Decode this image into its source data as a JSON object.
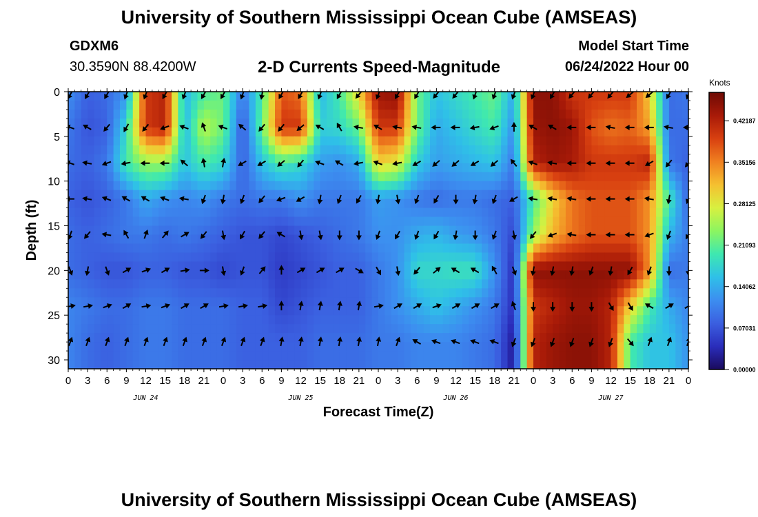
{
  "page": {
    "title": "University of Southern Mississippi Ocean Cube (AMSEAS)",
    "station_id": "GDXM6",
    "station_coords": "30.3590N  88.4200W",
    "plot_title": "2-D Currents Speed-Magnitude",
    "model_start_label": "Model Start Time",
    "model_start_value": "06/24/2022 Hour 00",
    "footer_title": "University of Southern Mississippi Ocean Cube (AMSEAS)"
  },
  "chart_data": {
    "type": "heatmap",
    "title": "2-D Currents Speed-Magnitude",
    "xlabel": "Forecast Time(Z)",
    "ylabel": "Depth (ft)",
    "xlim": [
      0,
      96
    ],
    "ylim": [
      31,
      0
    ],
    "x_ticks": [
      0,
      3,
      6,
      9,
      12,
      15,
      18,
      21,
      24,
      27,
      30,
      33,
      36,
      39,
      42,
      45,
      48,
      51,
      54,
      57,
      60,
      63,
      66,
      69,
      72,
      75,
      78,
      81,
      84,
      87,
      90,
      93,
      96
    ],
    "x_tick_labels": [
      "0",
      "3",
      "6",
      "9",
      "12",
      "15",
      "18",
      "21",
      "0",
      "3",
      "6",
      "9",
      "12",
      "15",
      "18",
      "21",
      "0",
      "3",
      "6",
      "9",
      "12",
      "15",
      "18",
      "21",
      "0",
      "3",
      "6",
      "9",
      "12",
      "15",
      "18",
      "21",
      "0"
    ],
    "date_labels": [
      {
        "x": 12,
        "text": "JUN 24"
      },
      {
        "x": 36,
        "text": "JUN 25"
      },
      {
        "x": 60,
        "text": "JUN 26"
      },
      {
        "x": 84,
        "text": "JUN 27"
      }
    ],
    "y_ticks": [
      0,
      5,
      10,
      15,
      20,
      25,
      30
    ],
    "y_tick_labels": [
      "0",
      "5",
      "10",
      "15",
      "20",
      "25",
      "30"
    ],
    "colorbar": {
      "label": "Knots",
      "min": 0.0,
      "max": 0.47,
      "ticks": [
        0.0,
        0.07031,
        0.14062,
        0.21093,
        0.28125,
        0.35156,
        0.42187
      ],
      "tick_labels": [
        "0.00000",
        "0.07031",
        "0.14062",
        "0.21093",
        "0.28125",
        "0.35156",
        "0.42187"
      ],
      "colors": [
        "#1a0a5c",
        "#2a2dbb",
        "#3b5fe0",
        "#3c8ef0",
        "#2fc0e8",
        "#3ee8b0",
        "#8cf560",
        "#d8f040",
        "#f5c030",
        "#f08020",
        "#d84010",
        "#a81a08",
        "#6e0a04"
      ]
    },
    "depths": [
      0,
      4,
      8,
      12,
      16,
      20,
      24,
      28
    ],
    "times": [
      0,
      3,
      6,
      9,
      12,
      15,
      18,
      21,
      24,
      27,
      30,
      33,
      36,
      39,
      42,
      45,
      48,
      51,
      54,
      57,
      60,
      63,
      66,
      69,
      72,
      75,
      78,
      81,
      84,
      87,
      90,
      93,
      96
    ],
    "speed": [
      [
        0.12,
        0.08,
        0.09,
        0.12,
        0.4,
        0.42,
        0.15,
        0.2,
        0.22,
        0.1,
        0.2,
        0.38,
        0.36,
        0.15,
        0.2,
        0.3,
        0.44,
        0.45,
        0.22,
        0.16,
        0.18,
        0.2,
        0.22,
        0.14,
        0.45,
        0.45,
        0.4,
        0.4,
        0.4,
        0.4,
        0.3,
        0.09,
        0.1
      ],
      [
        0.1,
        0.07,
        0.08,
        0.18,
        0.4,
        0.42,
        0.15,
        0.26,
        0.22,
        0.07,
        0.22,
        0.4,
        0.4,
        0.17,
        0.18,
        0.22,
        0.4,
        0.4,
        0.22,
        0.14,
        0.16,
        0.18,
        0.2,
        0.12,
        0.44,
        0.45,
        0.44,
        0.38,
        0.36,
        0.37,
        0.33,
        0.09,
        0.09
      ],
      [
        0.09,
        0.08,
        0.1,
        0.2,
        0.24,
        0.24,
        0.16,
        0.2,
        0.18,
        0.08,
        0.16,
        0.2,
        0.18,
        0.13,
        0.12,
        0.14,
        0.3,
        0.28,
        0.17,
        0.13,
        0.14,
        0.15,
        0.16,
        0.1,
        0.42,
        0.44,
        0.43,
        0.4,
        0.4,
        0.4,
        0.42,
        0.1,
        0.08
      ],
      [
        0.08,
        0.07,
        0.08,
        0.1,
        0.14,
        0.12,
        0.11,
        0.12,
        0.1,
        0.09,
        0.1,
        0.1,
        0.12,
        0.1,
        0.1,
        0.1,
        0.13,
        0.12,
        0.1,
        0.09,
        0.1,
        0.1,
        0.09,
        0.08,
        0.2,
        0.3,
        0.36,
        0.38,
        0.38,
        0.38,
        0.34,
        0.2,
        0.08
      ],
      [
        0.09,
        0.08,
        0.09,
        0.1,
        0.1,
        0.09,
        0.1,
        0.09,
        0.08,
        0.07,
        0.07,
        0.06,
        0.07,
        0.08,
        0.09,
        0.1,
        0.12,
        0.12,
        0.14,
        0.15,
        0.13,
        0.12,
        0.1,
        0.06,
        0.24,
        0.32,
        0.36,
        0.38,
        0.38,
        0.38,
        0.34,
        0.15,
        0.1
      ],
      [
        0.09,
        0.08,
        0.07,
        0.07,
        0.08,
        0.08,
        0.07,
        0.07,
        0.06,
        0.07,
        0.07,
        0.05,
        0.06,
        0.07,
        0.08,
        0.08,
        0.1,
        0.12,
        0.18,
        0.18,
        0.19,
        0.19,
        0.12,
        0.04,
        0.45,
        0.45,
        0.45,
        0.45,
        0.45,
        0.45,
        0.34,
        0.09,
        0.1
      ],
      [
        0.11,
        0.1,
        0.09,
        0.09,
        0.1,
        0.1,
        0.09,
        0.09,
        0.09,
        0.08,
        0.08,
        0.06,
        0.07,
        0.08,
        0.08,
        0.08,
        0.1,
        0.12,
        0.14,
        0.16,
        0.14,
        0.12,
        0.1,
        0.04,
        0.4,
        0.42,
        0.44,
        0.44,
        0.42,
        0.3,
        0.2,
        0.14,
        0.11
      ],
      [
        0.11,
        0.09,
        0.08,
        0.09,
        0.1,
        0.1,
        0.09,
        0.09,
        0.09,
        0.08,
        0.08,
        0.08,
        0.08,
        0.09,
        0.09,
        0.09,
        0.1,
        0.1,
        0.11,
        0.11,
        0.11,
        0.1,
        0.09,
        0.02,
        0.42,
        0.44,
        0.45,
        0.45,
        0.42,
        0.2,
        0.16,
        0.16,
        0.12
      ]
    ],
    "direction_deg": [
      [
        210,
        210,
        210,
        200,
        200,
        210,
        200,
        210,
        210,
        200,
        190,
        210,
        210,
        200,
        210,
        220,
        200,
        210,
        210,
        220,
        220,
        200,
        200,
        200,
        200,
        210,
        220,
        220,
        220,
        230,
        230,
        210,
        200
      ],
      [
        290,
        300,
        220,
        210,
        220,
        250,
        290,
        340,
        290,
        310,
        220,
        220,
        230,
        300,
        330,
        280,
        300,
        280,
        280,
        270,
        270,
        260,
        250,
        0,
        300,
        300,
        270,
        270,
        280,
        270,
        270,
        280,
        270
      ],
      [
        290,
        280,
        250,
        260,
        270,
        270,
        310,
        350,
        10,
        240,
        240,
        230,
        220,
        290,
        300,
        260,
        290,
        260,
        240,
        230,
        230,
        240,
        230,
        320,
        290,
        280,
        270,
        270,
        270,
        270,
        240,
        220,
        220
      ],
      [
        270,
        280,
        290,
        300,
        300,
        290,
        280,
        200,
        190,
        200,
        220,
        250,
        240,
        190,
        200,
        210,
        190,
        170,
        200,
        210,
        180,
        190,
        200,
        240,
        280,
        280,
        280,
        270,
        270,
        270,
        280,
        190,
        200
      ],
      [
        200,
        220,
        280,
        330,
        20,
        40,
        60,
        220,
        170,
        210,
        220,
        300,
        170,
        170,
        180,
        180,
        200,
        210,
        200,
        210,
        190,
        180,
        200,
        170,
        220,
        250,
        280,
        270,
        270,
        270,
        250,
        200,
        210
      ],
      [
        160,
        190,
        160,
        60,
        70,
        60,
        80,
        90,
        170,
        200,
        40,
        0,
        60,
        60,
        60,
        120,
        150,
        170,
        220,
        50,
        300,
        300,
        330,
        160,
        190,
        190,
        190,
        200,
        190,
        210,
        200,
        180,
        180
      ],
      [
        80,
        80,
        70,
        60,
        80,
        70,
        60,
        60,
        80,
        80,
        80,
        0,
        10,
        10,
        10,
        10,
        80,
        60,
        60,
        70,
        60,
        60,
        60,
        340,
        180,
        180,
        180,
        180,
        150,
        150,
        300,
        60,
        60
      ],
      [
        20,
        20,
        20,
        20,
        20,
        20,
        20,
        20,
        20,
        20,
        20,
        10,
        10,
        10,
        10,
        10,
        10,
        20,
        300,
        290,
        290,
        290,
        290,
        200,
        200,
        200,
        200,
        200,
        200,
        140,
        20,
        20,
        20
      ]
    ]
  }
}
